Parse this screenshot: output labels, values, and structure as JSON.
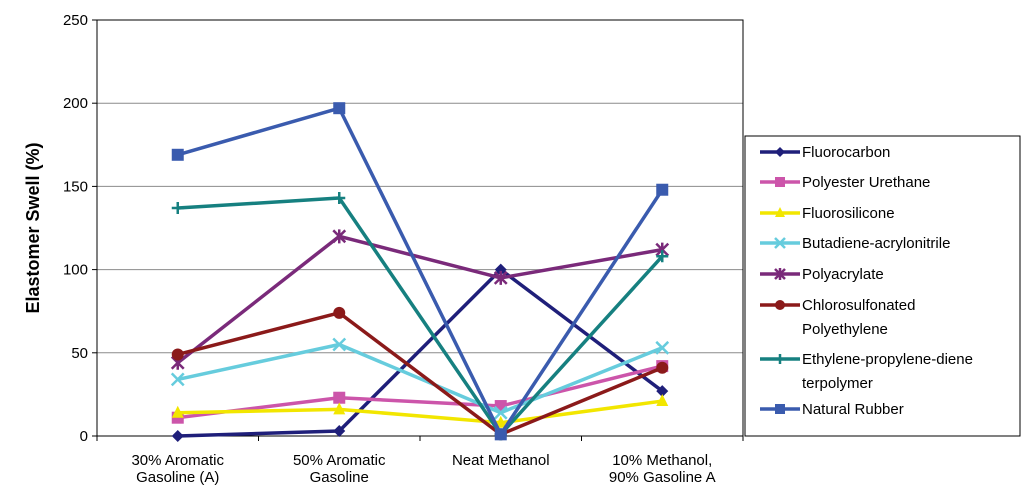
{
  "chart_data": {
    "type": "line",
    "title": "",
    "xlabel": "",
    "ylabel": "Elastomer Swell (%)",
    "ylim": [
      0,
      250
    ],
    "yticks": [
      0,
      50,
      100,
      150,
      200,
      250
    ],
    "grid": true,
    "legend_placement": "right",
    "categories": [
      [
        "30% Aromatic",
        "Gasoline (A)"
      ],
      [
        "50% Aromatic",
        "Gasoline"
      ],
      [
        "Neat Methanol"
      ],
      [
        "10% Methanol,",
        "90% Gasoline A"
      ]
    ],
    "series": [
      {
        "name": [
          "Fluorocarbon"
        ],
        "color": "#1F1F7A",
        "marker": "diamond",
        "values": [
          0,
          3,
          100,
          27
        ]
      },
      {
        "name": [
          "Polyester Urethane"
        ],
        "color": "#CC55AA",
        "marker": "square",
        "values": [
          11,
          23,
          18,
          42
        ]
      },
      {
        "name": [
          "Fluorosilicone"
        ],
        "color": "#F2E600",
        "marker": "triangle",
        "values": [
          14,
          16,
          8,
          21
        ]
      },
      {
        "name": [
          "Butadiene-acrylonitrile"
        ],
        "color": "#66CCDD",
        "marker": "x",
        "values": [
          34,
          55,
          14,
          53
        ]
      },
      {
        "name": [
          "Polyacrylate"
        ],
        "color": "#7A2A7A",
        "marker": "star",
        "values": [
          44,
          120,
          95,
          112
        ]
      },
      {
        "name": [
          "Chlorosulfonated",
          "Polyethylene"
        ],
        "color": "#8B1A1A",
        "marker": "circle",
        "values": [
          49,
          74,
          1,
          41
        ]
      },
      {
        "name": [
          "Ethylene-propylene-diene",
          "terpolymer"
        ],
        "color": "#168080",
        "marker": "plus",
        "values": [
          137,
          143,
          1,
          108
        ]
      },
      {
        "name": [
          "Natural Rubber"
        ],
        "color": "#3A5BAE",
        "marker": "square",
        "values": [
          169,
          197,
          1,
          148
        ]
      }
    ]
  }
}
